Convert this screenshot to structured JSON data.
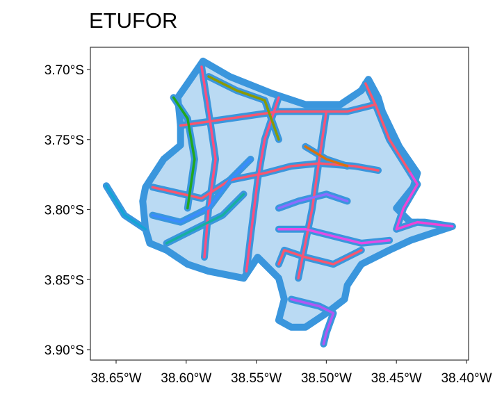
{
  "title": "ETUFOR",
  "chart_data": {
    "type": "map",
    "title": "ETUFOR",
    "x_ticks": [
      {
        "value": -38.65,
        "label": "38.65°W"
      },
      {
        "value": -38.6,
        "label": "38.60°W"
      },
      {
        "value": -38.55,
        "label": "38.55°W"
      },
      {
        "value": -38.5,
        "label": "38.50°W"
      },
      {
        "value": -38.45,
        "label": "38.45°W"
      },
      {
        "value": -38.4,
        "label": "38.40°W"
      }
    ],
    "y_ticks": [
      {
        "value": -3.7,
        "label": "3.70°S"
      },
      {
        "value": -3.75,
        "label": "3.75°S"
      },
      {
        "value": -3.8,
        "label": "3.80°S"
      },
      {
        "value": -3.85,
        "label": "3.85°S"
      },
      {
        "value": -3.9,
        "label": "3.90°S"
      }
    ],
    "stop_color": "#3a96dd",
    "coverage_area": [
      [
        -38.588,
        -3.694
      ],
      [
        -38.569,
        -3.705
      ],
      [
        -38.539,
        -3.717
      ],
      [
        -38.515,
        -3.725
      ],
      [
        -38.49,
        -3.725
      ],
      [
        -38.475,
        -3.715
      ],
      [
        -38.47,
        -3.707
      ],
      [
        -38.463,
        -3.72
      ],
      [
        -38.46,
        -3.73
      ],
      [
        -38.448,
        -3.755
      ],
      [
        -38.435,
        -3.774
      ],
      [
        -38.438,
        -3.784
      ],
      [
        -38.45,
        -3.799
      ],
      [
        -38.44,
        -3.809
      ],
      [
        -38.43,
        -3.809
      ],
      [
        -38.41,
        -3.812
      ],
      [
        -38.425,
        -3.817
      ],
      [
        -38.44,
        -3.822
      ],
      [
        -38.455,
        -3.829
      ],
      [
        -38.475,
        -3.839
      ],
      [
        -38.485,
        -3.854
      ],
      [
        -38.487,
        -3.864
      ],
      [
        -38.5,
        -3.874
      ],
      [
        -38.515,
        -3.884
      ],
      [
        -38.525,
        -3.884
      ],
      [
        -38.534,
        -3.879
      ],
      [
        -38.53,
        -3.864
      ],
      [
        -38.534,
        -3.849
      ],
      [
        -38.549,
        -3.834
      ],
      [
        -38.559,
        -3.849
      ],
      [
        -38.584,
        -3.844
      ],
      [
        -38.599,
        -3.839
      ],
      [
        -38.614,
        -3.829
      ],
      [
        -38.626,
        -3.824
      ],
      [
        -38.629,
        -3.814
      ],
      [
        -38.631,
        -3.794
      ],
      [
        -38.629,
        -3.784
      ],
      [
        -38.616,
        -3.764
      ],
      [
        -38.604,
        -3.754
      ],
      [
        -38.604,
        -3.74
      ],
      [
        -38.606,
        -3.72
      ],
      [
        -38.599,
        -3.71
      ],
      [
        -38.588,
        -3.694
      ]
    ],
    "routes": [
      {
        "color": "#f8566e",
        "coords": [
          [
            -38.604,
            -3.74
          ],
          [
            -38.569,
            -3.735
          ],
          [
            -38.534,
            -3.73
          ],
          [
            -38.51,
            -3.73
          ],
          [
            -38.485,
            -3.73
          ],
          [
            -38.465,
            -3.725
          ]
        ]
      },
      {
        "color": "#f8566e",
        "coords": [
          [
            -38.624,
            -3.784
          ],
          [
            -38.589,
            -3.792
          ],
          [
            -38.569,
            -3.779
          ],
          [
            -38.544,
            -3.774
          ],
          [
            -38.525,
            -3.769
          ],
          [
            -38.505,
            -3.767
          ],
          [
            -38.48,
            -3.769
          ],
          [
            -38.463,
            -3.772
          ]
        ]
      },
      {
        "color": "#fb4f80",
        "coords": [
          [
            -38.589,
            -3.698
          ],
          [
            -38.584,
            -3.73
          ],
          [
            -38.579,
            -3.764
          ],
          [
            -38.584,
            -3.799
          ],
          [
            -38.587,
            -3.834
          ]
        ]
      },
      {
        "color": "#fb4f80",
        "coords": [
          [
            -38.534,
            -3.72
          ],
          [
            -38.544,
            -3.75
          ],
          [
            -38.549,
            -3.779
          ],
          [
            -38.554,
            -3.819
          ],
          [
            -38.557,
            -3.844
          ]
        ]
      },
      {
        "color": "#f7547a",
        "coords": [
          [
            -38.5,
            -3.73
          ],
          [
            -38.505,
            -3.764
          ],
          [
            -38.51,
            -3.799
          ],
          [
            -38.515,
            -3.824
          ],
          [
            -38.52,
            -3.849
          ]
        ]
      },
      {
        "color": "#f8566e",
        "coords": [
          [
            -38.472,
            -3.71
          ],
          [
            -38.465,
            -3.725
          ],
          [
            -38.455,
            -3.75
          ],
          [
            -38.44,
            -3.774
          ]
        ]
      },
      {
        "color": "#ee45d6",
        "coords": [
          [
            -38.44,
            -3.774
          ],
          [
            -38.435,
            -3.782
          ],
          [
            -38.445,
            -3.799
          ],
          [
            -38.45,
            -3.814
          ],
          [
            -38.435,
            -3.809
          ],
          [
            -38.41,
            -3.812
          ]
        ]
      },
      {
        "color": "#e44ce6",
        "coords": [
          [
            -38.534,
            -3.814
          ],
          [
            -38.515,
            -3.814
          ],
          [
            -38.495,
            -3.819
          ],
          [
            -38.475,
            -3.824
          ],
          [
            -38.455,
            -3.822
          ]
        ]
      },
      {
        "color": "#b256f2",
        "coords": [
          [
            -38.525,
            -3.864
          ],
          [
            -38.505,
            -3.869
          ],
          [
            -38.495,
            -3.874
          ],
          [
            -38.5,
            -3.888
          ],
          [
            -38.502,
            -3.896
          ]
        ]
      },
      {
        "color": "#22a81e",
        "coords": [
          [
            -38.609,
            -3.72
          ],
          [
            -38.599,
            -3.735
          ],
          [
            -38.594,
            -3.764
          ],
          [
            -38.599,
            -3.799
          ]
        ]
      },
      {
        "color": "#8c9a00",
        "coords": [
          [
            -38.584,
            -3.705
          ],
          [
            -38.564,
            -3.715
          ],
          [
            -38.544,
            -3.722
          ],
          [
            -38.534,
            -3.75
          ]
        ]
      },
      {
        "color": "#12a6d6",
        "coords": [
          [
            -38.657,
            -3.783
          ],
          [
            -38.644,
            -3.804
          ],
          [
            -38.629,
            -3.814
          ]
        ]
      },
      {
        "color": "#3a8cff",
        "coords": [
          [
            -38.624,
            -3.804
          ],
          [
            -38.604,
            -3.809
          ],
          [
            -38.584,
            -3.799
          ],
          [
            -38.569,
            -3.779
          ],
          [
            -38.554,
            -3.764
          ]
        ]
      },
      {
        "color": "#16b0a0",
        "coords": [
          [
            -38.614,
            -3.824
          ],
          [
            -38.594,
            -3.814
          ],
          [
            -38.574,
            -3.804
          ],
          [
            -38.559,
            -3.789
          ]
        ]
      },
      {
        "color": "#d9730d",
        "coords": [
          [
            -38.515,
            -3.755
          ],
          [
            -38.5,
            -3.764
          ],
          [
            -38.485,
            -3.769
          ]
        ]
      },
      {
        "color": "#8b6cff",
        "coords": [
          [
            -38.534,
            -3.799
          ],
          [
            -38.52,
            -3.794
          ],
          [
            -38.5,
            -3.789
          ],
          [
            -38.485,
            -3.794
          ]
        ]
      },
      {
        "color": "#f8566e",
        "coords": [
          [
            -38.534,
            -3.839
          ],
          [
            -38.53,
            -3.829
          ],
          [
            -38.515,
            -3.834
          ],
          [
            -38.495,
            -3.839
          ],
          [
            -38.475,
            -3.829
          ]
        ]
      }
    ]
  }
}
